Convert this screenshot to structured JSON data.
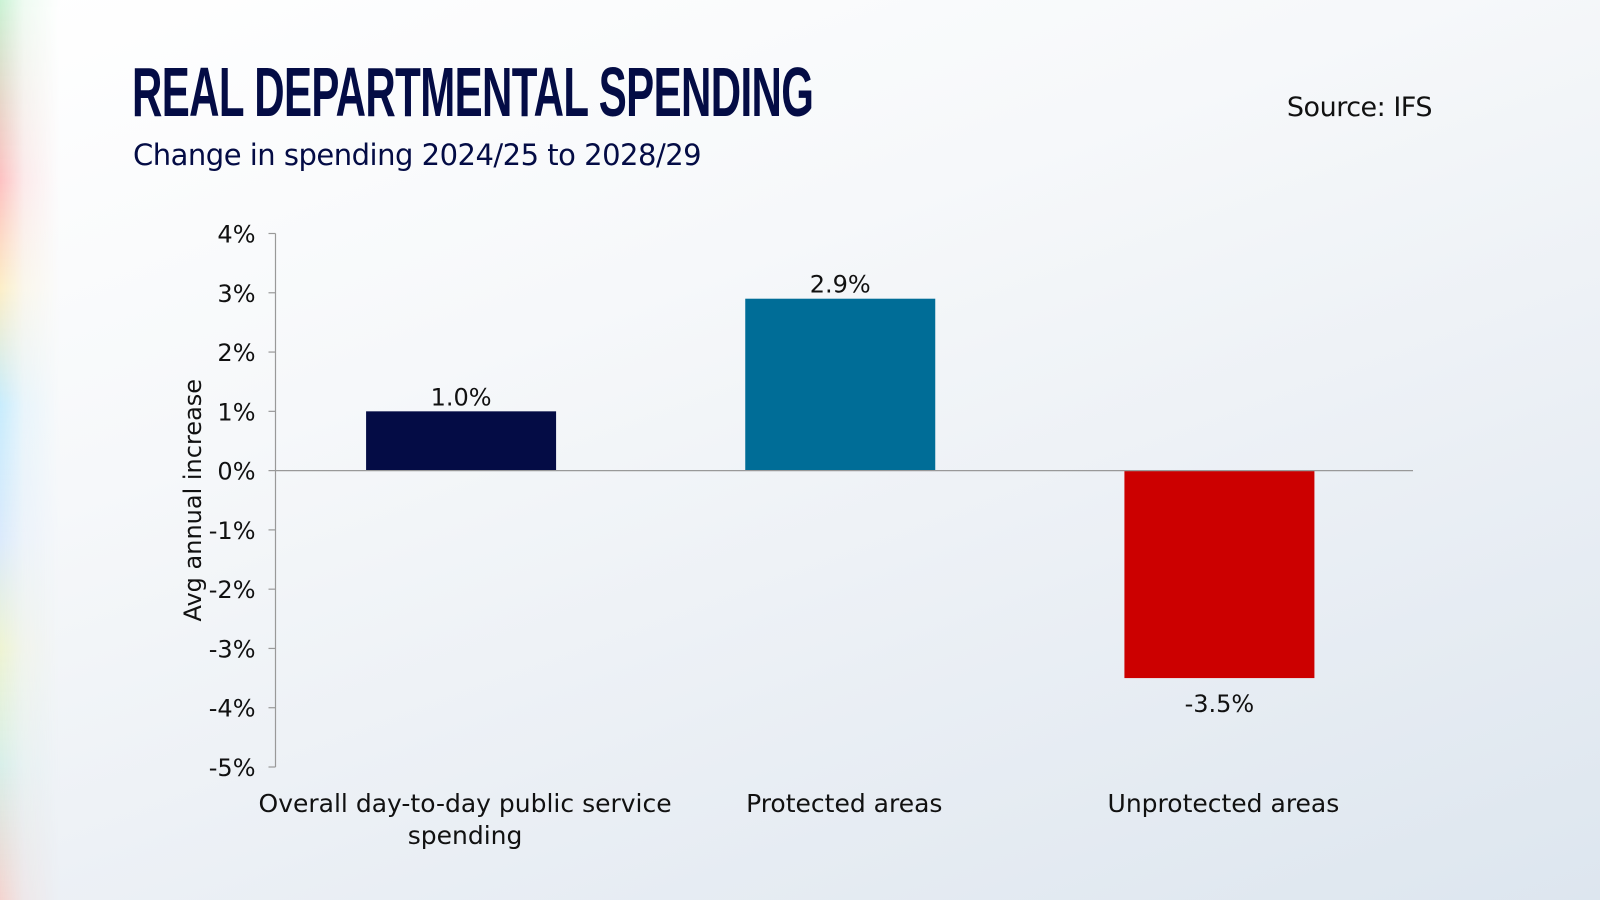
{
  "header": {
    "title": "REAL DEPARTMENTAL SPENDING",
    "subtitle": "Change in spending 2024/25 to 2028/29",
    "source": "Source: IFS"
  },
  "chart_data": {
    "type": "bar",
    "title": "REAL DEPARTMENTAL SPENDING",
    "subtitle": "Change in spending 2024/25 to 2028/29",
    "ylabel": "Avg annual increase",
    "xlabel": "",
    "ylim": [
      -5,
      4
    ],
    "yticks": [
      4,
      3,
      2,
      1,
      0,
      -1,
      -2,
      -3,
      -4,
      -5
    ],
    "ytick_labels": [
      "4%",
      "3%",
      "2%",
      "1%",
      "0%",
      "-1%",
      "-2%",
      "-3%",
      "-4%",
      "-5%"
    ],
    "categories": [
      [
        "Overall day-to-day public service",
        "spending"
      ],
      [
        "Protected areas"
      ],
      [
        "Unprotected areas"
      ]
    ],
    "values": [
      1.0,
      2.9,
      -3.5
    ],
    "data_labels": [
      "1.0%",
      "2.9%",
      "-3.5%"
    ],
    "colors": [
      "#040c45",
      "#006d97",
      "#cc0000"
    ],
    "grid": false,
    "legend": "none"
  }
}
